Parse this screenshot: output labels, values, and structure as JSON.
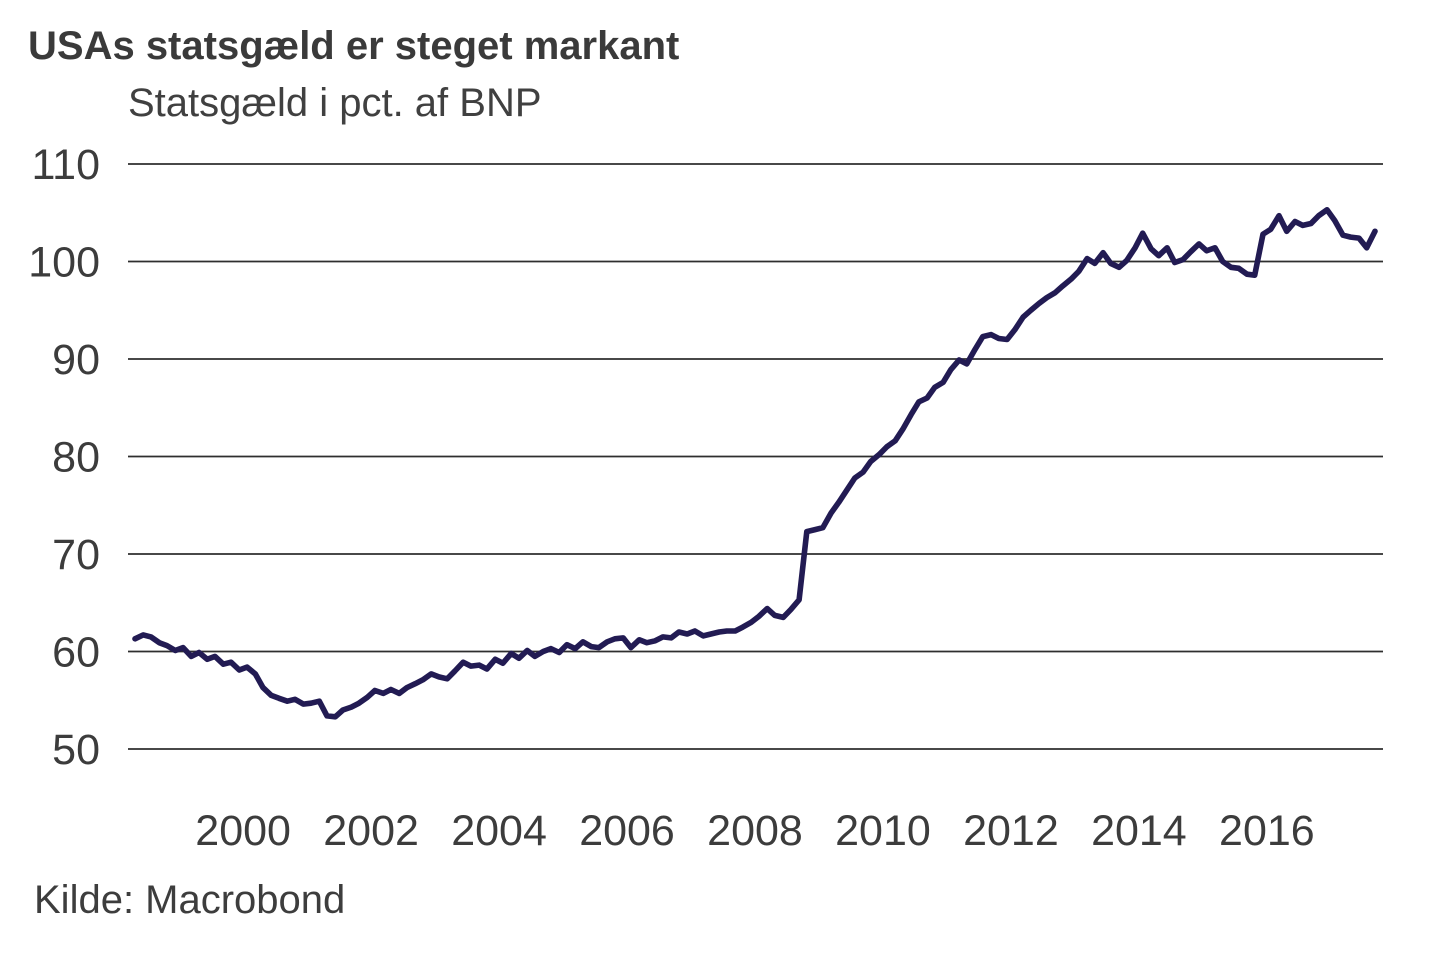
{
  "header": {
    "title": "USAs statsgæld er steget markant",
    "subtitle": "Statsgæld i pct. af BNP"
  },
  "footer": {
    "source": "Kilde: Macrobond"
  },
  "chart_data": {
    "type": "line",
    "title": "USAs statsgæld er steget markant",
    "subtitle": "Statsgæld i pct. af BNP",
    "source": "Kilde: Macrobond",
    "xlabel": "",
    "ylabel": "Statsgæld i pct. af BNP",
    "x_range": [
      1998.31,
      2017.69
    ],
    "y_range": [
      50,
      110
    ],
    "x_ticks": [
      2000,
      2002,
      2004,
      2006,
      2008,
      2010,
      2012,
      2014,
      2016
    ],
    "y_ticks": [
      50,
      60,
      70,
      80,
      90,
      100,
      110
    ],
    "grid": "horizontal",
    "legend_position": "none",
    "line_color": "#221b53",
    "grid_color": "#2e2e2e",
    "series": [
      {
        "name": "USA statsgæld i pct. af BNP",
        "points": [
          [
            1998.31,
            61.3
          ],
          [
            1998.44,
            61.7
          ],
          [
            1998.56,
            61.5
          ],
          [
            1998.69,
            60.9
          ],
          [
            1998.81,
            60.6
          ],
          [
            1998.94,
            60.1
          ],
          [
            1999.06,
            60.4
          ],
          [
            1999.19,
            59.5
          ],
          [
            1999.31,
            59.9
          ],
          [
            1999.44,
            59.2
          ],
          [
            1999.56,
            59.5
          ],
          [
            1999.69,
            58.7
          ],
          [
            1999.81,
            58.9
          ],
          [
            1999.94,
            58.1
          ],
          [
            2000.06,
            58.4
          ],
          [
            2000.19,
            57.7
          ],
          [
            2000.31,
            56.3
          ],
          [
            2000.44,
            55.5
          ],
          [
            2000.56,
            55.2
          ],
          [
            2000.69,
            54.9
          ],
          [
            2000.81,
            55.1
          ],
          [
            2000.94,
            54.6
          ],
          [
            2001.06,
            54.7
          ],
          [
            2001.19,
            54.9
          ],
          [
            2001.31,
            53.4
          ],
          [
            2001.44,
            53.3
          ],
          [
            2001.56,
            54.0
          ],
          [
            2001.69,
            54.3
          ],
          [
            2001.81,
            54.7
          ],
          [
            2001.94,
            55.3
          ],
          [
            2002.06,
            56.0
          ],
          [
            2002.19,
            55.7
          ],
          [
            2002.31,
            56.1
          ],
          [
            2002.44,
            55.7
          ],
          [
            2002.56,
            56.3
          ],
          [
            2002.69,
            56.7
          ],
          [
            2002.81,
            57.1
          ],
          [
            2002.94,
            57.7
          ],
          [
            2003.06,
            57.4
          ],
          [
            2003.19,
            57.2
          ],
          [
            2003.31,
            58.0
          ],
          [
            2003.44,
            58.9
          ],
          [
            2003.56,
            58.5
          ],
          [
            2003.69,
            58.6
          ],
          [
            2003.81,
            58.2
          ],
          [
            2003.94,
            59.2
          ],
          [
            2004.06,
            58.8
          ],
          [
            2004.19,
            59.8
          ],
          [
            2004.31,
            59.3
          ],
          [
            2004.44,
            60.1
          ],
          [
            2004.56,
            59.5
          ],
          [
            2004.69,
            60.0
          ],
          [
            2004.81,
            60.3
          ],
          [
            2004.94,
            59.9
          ],
          [
            2005.06,
            60.7
          ],
          [
            2005.19,
            60.3
          ],
          [
            2005.31,
            61.0
          ],
          [
            2005.44,
            60.5
          ],
          [
            2005.56,
            60.4
          ],
          [
            2005.69,
            61.0
          ],
          [
            2005.81,
            61.3
          ],
          [
            2005.94,
            61.4
          ],
          [
            2006.06,
            60.4
          ],
          [
            2006.19,
            61.2
          ],
          [
            2006.31,
            60.9
          ],
          [
            2006.44,
            61.1
          ],
          [
            2006.56,
            61.5
          ],
          [
            2006.69,
            61.4
          ],
          [
            2006.81,
            62.0
          ],
          [
            2006.94,
            61.8
          ],
          [
            2007.06,
            62.1
          ],
          [
            2007.19,
            61.6
          ],
          [
            2007.31,
            61.8
          ],
          [
            2007.44,
            62.0
          ],
          [
            2007.56,
            62.1
          ],
          [
            2007.69,
            62.1
          ],
          [
            2007.81,
            62.5
          ],
          [
            2007.94,
            63.0
          ],
          [
            2008.06,
            63.6
          ],
          [
            2008.19,
            64.4
          ],
          [
            2008.31,
            63.7
          ],
          [
            2008.44,
            63.5
          ],
          [
            2008.56,
            64.3
          ],
          [
            2008.69,
            65.3
          ],
          [
            2008.81,
            72.3
          ],
          [
            2008.94,
            72.5
          ],
          [
            2009.06,
            72.7
          ],
          [
            2009.19,
            74.2
          ],
          [
            2009.31,
            75.3
          ],
          [
            2009.44,
            76.6
          ],
          [
            2009.56,
            77.8
          ],
          [
            2009.69,
            78.4
          ],
          [
            2009.81,
            79.5
          ],
          [
            2009.94,
            80.2
          ],
          [
            2010.06,
            81.0
          ],
          [
            2010.19,
            81.6
          ],
          [
            2010.31,
            82.8
          ],
          [
            2010.44,
            84.3
          ],
          [
            2010.56,
            85.6
          ],
          [
            2010.69,
            86.0
          ],
          [
            2010.81,
            87.1
          ],
          [
            2010.94,
            87.6
          ],
          [
            2011.06,
            88.9
          ],
          [
            2011.19,
            89.9
          ],
          [
            2011.31,
            89.5
          ],
          [
            2011.44,
            91.0
          ],
          [
            2011.56,
            92.3
          ],
          [
            2011.69,
            92.5
          ],
          [
            2011.81,
            92.1
          ],
          [
            2011.94,
            92.0
          ],
          [
            2012.06,
            93.0
          ],
          [
            2012.19,
            94.3
          ],
          [
            2012.31,
            95.0
          ],
          [
            2012.44,
            95.7
          ],
          [
            2012.56,
            96.3
          ],
          [
            2012.69,
            96.8
          ],
          [
            2012.81,
            97.5
          ],
          [
            2012.94,
            98.2
          ],
          [
            2013.06,
            99.0
          ],
          [
            2013.19,
            100.3
          ],
          [
            2013.31,
            99.8
          ],
          [
            2013.44,
            100.9
          ],
          [
            2013.56,
            99.8
          ],
          [
            2013.69,
            99.4
          ],
          [
            2013.81,
            100.1
          ],
          [
            2013.94,
            101.4
          ],
          [
            2014.06,
            102.9
          ],
          [
            2014.19,
            101.3
          ],
          [
            2014.31,
            100.6
          ],
          [
            2014.44,
            101.4
          ],
          [
            2014.56,
            99.9
          ],
          [
            2014.69,
            100.2
          ],
          [
            2014.81,
            101.0
          ],
          [
            2014.94,
            101.8
          ],
          [
            2015.06,
            101.1
          ],
          [
            2015.19,
            101.4
          ],
          [
            2015.31,
            100.0
          ],
          [
            2015.44,
            99.4
          ],
          [
            2015.56,
            99.3
          ],
          [
            2015.69,
            98.7
          ],
          [
            2015.81,
            98.6
          ],
          [
            2015.94,
            102.8
          ],
          [
            2016.06,
            103.3
          ],
          [
            2016.19,
            104.7
          ],
          [
            2016.31,
            103.1
          ],
          [
            2016.44,
            104.1
          ],
          [
            2016.56,
            103.7
          ],
          [
            2016.69,
            103.9
          ],
          [
            2016.81,
            104.7
          ],
          [
            2016.94,
            105.3
          ],
          [
            2017.06,
            104.2
          ],
          [
            2017.19,
            102.7
          ],
          [
            2017.31,
            102.5
          ],
          [
            2017.44,
            102.4
          ],
          [
            2017.56,
            101.4
          ],
          [
            2017.69,
            103.1
          ]
        ]
      }
    ]
  }
}
